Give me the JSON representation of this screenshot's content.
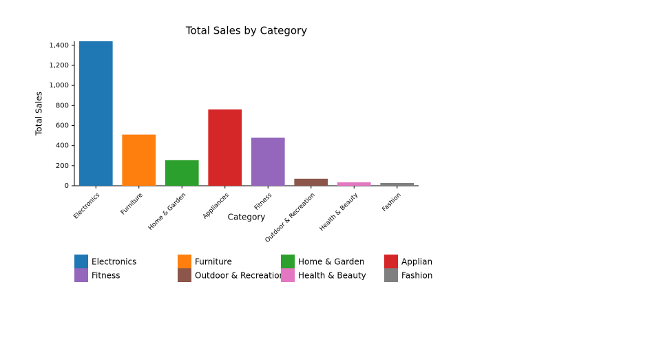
{
  "chart_data": {
    "type": "bar",
    "title": "Total Sales by Category",
    "x_label": "Category",
    "y_label": "Total Sales",
    "categories": [
      "Electronics",
      "Furniture",
      "Home & Garden",
      "Appliances",
      "Fitness",
      "Outdoor & Recreation",
      "Health & Beauty",
      "Fashion"
    ],
    "values": [
      1440,
      510,
      255,
      760,
      480,
      70,
      34,
      28
    ],
    "colors": [
      "#1f77b4",
      "#ff7f0e",
      "#2ca02c",
      "#d62728",
      "#9467bd",
      "#8c564b",
      "#e377c2",
      "#7f7f7f"
    ],
    "ylim": [
      0,
      1440
    ],
    "yticks": [
      0,
      200,
      400,
      600,
      800,
      {
        "value": 1000,
        "label": "1,000"
      },
      {
        "value": 1200,
        "label": "1,200"
      },
      {
        "value": 1400,
        "label": "1,400"
      }
    ],
    "legend": "bottom"
  }
}
